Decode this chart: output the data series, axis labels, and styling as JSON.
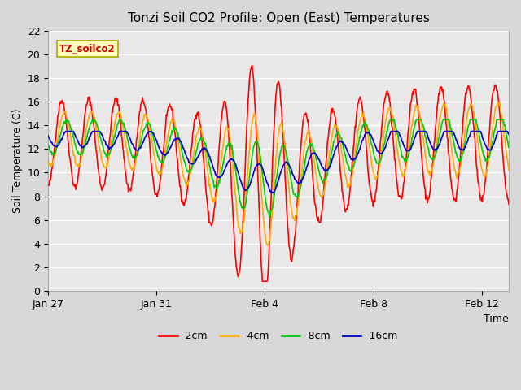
{
  "title": "Tonzi Soil CO2 Profile: Open (East) Temperatures",
  "xlabel": "Time",
  "ylabel": "Soil Temperature (C)",
  "ylim": [
    0,
    22
  ],
  "annotation": "TZ_soilco2",
  "x_ticks_labels": [
    "Jan 27",
    "Jan 31",
    "Feb 4",
    "Feb 8",
    "Feb 12"
  ],
  "x_ticks_days": [
    0,
    4,
    8,
    12,
    16
  ],
  "bg_color": "#d8d8d8",
  "plot_bg_color": "#e8e8e8",
  "line_colors": [
    "#ff0000",
    "#ffaa00",
    "#00cc00",
    "#0000cc"
  ],
  "line_labels": [
    "-2cm",
    "-4cm",
    "-8cm",
    "-16cm"
  ],
  "line_width": 1.2
}
